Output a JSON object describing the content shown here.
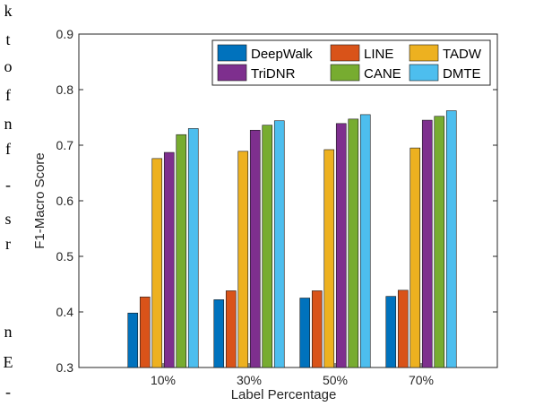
{
  "side_text_fragments": [
    "k",
    "t",
    "o",
    "f",
    "n",
    "f",
    "-",
    "s",
    "r",
    "n",
    "E",
    "-"
  ],
  "chart_data": {
    "type": "bar",
    "xlabel": "Label Percentage",
    "ylabel": "F1-Macro Score",
    "ylim": [
      0.3,
      0.9
    ],
    "y_ticks": [
      "0.3",
      "0.4",
      "0.5",
      "0.6",
      "0.7",
      "0.8",
      "0.9"
    ],
    "categories": [
      "10%",
      "30%",
      "50%",
      "70%"
    ],
    "grid": false,
    "legend_position": "top-right",
    "series": [
      {
        "name": "DeepWalk",
        "color": "#0072BD",
        "values": [
          0.398,
          0.422,
          0.425,
          0.428
        ]
      },
      {
        "name": "LINE",
        "color": "#D95319",
        "values": [
          0.427,
          0.438,
          0.438,
          0.439
        ]
      },
      {
        "name": "TADW",
        "color": "#EDB120",
        "values": [
          0.676,
          0.689,
          0.692,
          0.695
        ]
      },
      {
        "name": "TriDNR",
        "color": "#7E2F8E",
        "values": [
          0.687,
          0.727,
          0.739,
          0.745
        ]
      },
      {
        "name": "CANE",
        "color": "#77AC30",
        "values": [
          0.719,
          0.736,
          0.747,
          0.752
        ]
      },
      {
        "name": "DMTE",
        "color": "#4DBEEE",
        "values": [
          0.73,
          0.744,
          0.755,
          0.762
        ]
      }
    ]
  }
}
